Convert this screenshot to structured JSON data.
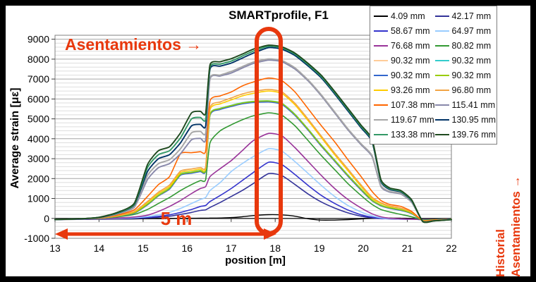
{
  "title": "SMARTprofile, F1",
  "annotations": {
    "asentamientos_label": "Asentamientos →",
    "span_label": "5 m",
    "historial_line1": "Historial",
    "historial_line2": "Asentamientos →",
    "accent_color": "#E8380D"
  },
  "chart_data": {
    "type": "line",
    "title": "SMARTprofile, F1",
    "xlabel": "position [m]",
    "ylabel": "Average strain [με]",
    "xlim": [
      13,
      22
    ],
    "ylim": [
      -1000,
      9000
    ],
    "x_ticks": [
      13,
      14,
      15,
      16,
      17,
      18,
      19,
      20,
      21,
      22
    ],
    "y_ticks": [
      -1000,
      0,
      1000,
      2000,
      3000,
      4000,
      5000,
      6000,
      7000,
      8000,
      9000
    ],
    "grid": {
      "major_step": 1000,
      "minor_step": 200
    },
    "legend_position": "top-right",
    "legend_columns": 2,
    "x": [
      13,
      13.5,
      14,
      14.4,
      14.8,
      15.1,
      15.35,
      15.6,
      15.85,
      16.1,
      16.3,
      16.42,
      16.52,
      16.75,
      17,
      17.25,
      17.5,
      17.85,
      18.15,
      18.45,
      18.75,
      19.05,
      19.35,
      19.65,
      19.95,
      20.2,
      20.4,
      20.6,
      20.85,
      21.1,
      21.35,
      21.6,
      22
    ],
    "series": [
      {
        "name": "4.09 mm",
        "color": "#000000",
        "y": [
          -60,
          -55,
          -45,
          -35,
          -25,
          -15,
          -10,
          -5,
          0,
          5,
          10,
          10,
          15,
          20,
          40,
          80,
          140,
          185,
          175,
          110,
          -20,
          -85,
          -85,
          -60,
          -25,
          5,
          15,
          15,
          10,
          -5,
          -35,
          -45,
          -40
        ]
      },
      {
        "name": "42.17 mm",
        "color": "#333399",
        "y": [
          -55,
          -45,
          -35,
          -20,
          0,
          25,
          60,
          110,
          200,
          300,
          400,
          430,
          550,
          800,
          1100,
          1400,
          1750,
          2250,
          2150,
          1700,
          1220,
          820,
          520,
          280,
          110,
          30,
          -10,
          -25,
          -35,
          -45,
          -60,
          -55,
          -45
        ]
      },
      {
        "name": "58.67 mm",
        "color": "#3333CC",
        "y": [
          -55,
          -45,
          -30,
          -15,
          10,
          45,
          100,
          180,
          300,
          450,
          600,
          650,
          850,
          1150,
          1500,
          1900,
          2300,
          2820,
          2700,
          2200,
          1650,
          1150,
          750,
          420,
          180,
          60,
          0,
          -20,
          -35,
          -45,
          -60,
          -55,
          -45
        ]
      },
      {
        "name": "64.97 mm",
        "color": "#99CCFF",
        "y": [
          -55,
          -45,
          -25,
          0,
          35,
          90,
          180,
          300,
          500,
          750,
          950,
          1050,
          1400,
          1800,
          2350,
          2750,
          3100,
          3500,
          3380,
          2850,
          2250,
          1650,
          1100,
          650,
          320,
          130,
          30,
          -10,
          -30,
          -45,
          -60,
          -55,
          -45
        ]
      },
      {
        "name": "76.68 mm",
        "color": "#993399",
        "y": [
          -55,
          -40,
          -20,
          15,
          70,
          160,
          350,
          600,
          900,
          1250,
          1500,
          1600,
          2100,
          2500,
          2900,
          3400,
          3900,
          4270,
          4150,
          3550,
          2850,
          2150,
          1500,
          950,
          520,
          230,
          80,
          10,
          -20,
          -40,
          -60,
          -55,
          -45
        ]
      },
      {
        "name": "80.82 mm",
        "color": "#339933",
        "y": [
          -55,
          -30,
          0,
          70,
          200,
          450,
          750,
          1050,
          1400,
          1700,
          1900,
          1950,
          3800,
          4400,
          4700,
          4950,
          5150,
          5300,
          5180,
          4650,
          3900,
          3150,
          2450,
          1750,
          1150,
          700,
          450,
          320,
          200,
          80,
          -80,
          -60,
          -50
        ]
      },
      {
        "name": "90.32 mm",
        "color": "#FFCC99",
        "y": [
          -55,
          -30,
          10,
          100,
          280,
          700,
          1150,
          1500,
          2200,
          2300,
          2380,
          2420,
          5200,
          5500,
          5650,
          5780,
          5850,
          5880,
          5760,
          5200,
          4450,
          3650,
          2900,
          2150,
          1450,
          900,
          650,
          520,
          420,
          250,
          -100,
          -80,
          -50
        ]
      },
      {
        "name": "90.32 mm",
        "color": "#33CCCC",
        "y": [
          -50,
          -25,
          15,
          110,
          300,
          720,
          1170,
          1530,
          2230,
          2330,
          2410,
          2450,
          5230,
          5530,
          5680,
          5810,
          5880,
          5910,
          5790,
          5230,
          4480,
          3680,
          2930,
          2180,
          1480,
          920,
          670,
          540,
          440,
          265,
          -95,
          -75,
          -45
        ]
      },
      {
        "name": "90.32 mm",
        "color": "#3366CC",
        "y": [
          -60,
          -35,
          5,
          90,
          260,
          680,
          1130,
          1470,
          2170,
          2270,
          2350,
          2390,
          5170,
          5470,
          5620,
          5750,
          5820,
          5850,
          5730,
          5170,
          4420,
          3620,
          2870,
          2120,
          1420,
          880,
          630,
          500,
          400,
          235,
          -105,
          -85,
          -55
        ]
      },
      {
        "name": "90.32 mm",
        "color": "#99CC00",
        "y": [
          -52,
          -28,
          12,
          105,
          290,
          710,
          1160,
          1515,
          2215,
          2315,
          2395,
          2435,
          5215,
          5515,
          5665,
          5795,
          5865,
          5895,
          5775,
          5215,
          4465,
          3665,
          2915,
          2165,
          1465,
          910,
          660,
          530,
          430,
          258,
          -98,
          -78,
          -48
        ]
      },
      {
        "name": "93.26 mm",
        "color": "#FFCC00",
        "y": [
          -55,
          -30,
          15,
          120,
          330,
          800,
          1250,
          1600,
          2300,
          2400,
          2480,
          2520,
          5450,
          5750,
          5950,
          6150,
          6280,
          6400,
          6280,
          5700,
          4900,
          4050,
          3200,
          2400,
          1600,
          1000,
          750,
          600,
          500,
          300,
          -110,
          -85,
          -50
        ]
      },
      {
        "name": "96.80 mm",
        "color": "#F2A444",
        "y": [
          -55,
          -30,
          18,
          130,
          350,
          850,
          1320,
          1680,
          2380,
          2480,
          2560,
          2600,
          5550,
          5850,
          6050,
          6250,
          6380,
          6480,
          6360,
          5780,
          4980,
          4130,
          3280,
          2480,
          1680,
          1060,
          790,
          630,
          520,
          315,
          -110,
          -85,
          -50
        ]
      },
      {
        "name": "107.38 mm",
        "color": "#FF6600",
        "y": [
          -55,
          -30,
          25,
          160,
          430,
          1100,
          1700,
          2100,
          3250,
          3300,
          3350,
          3380,
          5900,
          6150,
          6350,
          6650,
          6850,
          7050,
          6920,
          6350,
          5500,
          4650,
          3850,
          2950,
          2100,
          1350,
          900,
          700,
          600,
          350,
          -120,
          -95,
          -55
        ]
      },
      {
        "name": "115.41 mm",
        "color": "#8888AA",
        "y": [
          -55,
          -30,
          35,
          210,
          560,
          1950,
          2550,
          2750,
          3250,
          3950,
          4020,
          3960,
          7000,
          7150,
          7300,
          7550,
          7780,
          7950,
          7870,
          7500,
          6900,
          6150,
          5300,
          4450,
          3700,
          3100,
          1600,
          1320,
          1230,
          800,
          -140,
          -120,
          -60
        ]
      },
      {
        "name": "119.67 mm",
        "color": "#A6A6A6",
        "y": [
          -55,
          -30,
          38,
          220,
          600,
          2150,
          2750,
          2950,
          3500,
          4300,
          4370,
          4300,
          7050,
          7200,
          7380,
          7620,
          7850,
          8010,
          7930,
          7560,
          6950,
          6200,
          5350,
          4500,
          3750,
          3150,
          1650,
          1350,
          1260,
          820,
          -140,
          -120,
          -60
        ]
      },
      {
        "name": "130.95 mm",
        "color": "#003366",
        "y": [
          -55,
          -30,
          45,
          250,
          680,
          2350,
          3000,
          3200,
          3800,
          4650,
          4720,
          4650,
          7500,
          7650,
          7800,
          8050,
          8300,
          8580,
          8500,
          8180,
          7650,
          7050,
          6250,
          5400,
          4550,
          3850,
          1850,
          1450,
          1330,
          880,
          -150,
          -120,
          -60
        ]
      },
      {
        "name": "133.38 mm",
        "color": "#339966",
        "y": [
          -55,
          -30,
          48,
          265,
          710,
          2550,
          3200,
          3400,
          4050,
          5000,
          5070,
          4980,
          7600,
          7750,
          7900,
          8150,
          8400,
          8650,
          8570,
          8250,
          7720,
          7120,
          6320,
          5470,
          4620,
          3920,
          1900,
          1490,
          1360,
          900,
          -150,
          -125,
          -60
        ]
      },
      {
        "name": "139.76 mm",
        "color": "#1F4A1F",
        "y": [
          -55,
          -30,
          55,
          290,
          760,
          2700,
          3400,
          3600,
          4300,
          5300,
          5380,
          5280,
          7720,
          7870,
          8020,
          8250,
          8500,
          8700,
          8620,
          8300,
          7780,
          7180,
          6380,
          5530,
          4680,
          3980,
          1950,
          1530,
          1400,
          930,
          -160,
          -130,
          -60
        ]
      }
    ]
  }
}
